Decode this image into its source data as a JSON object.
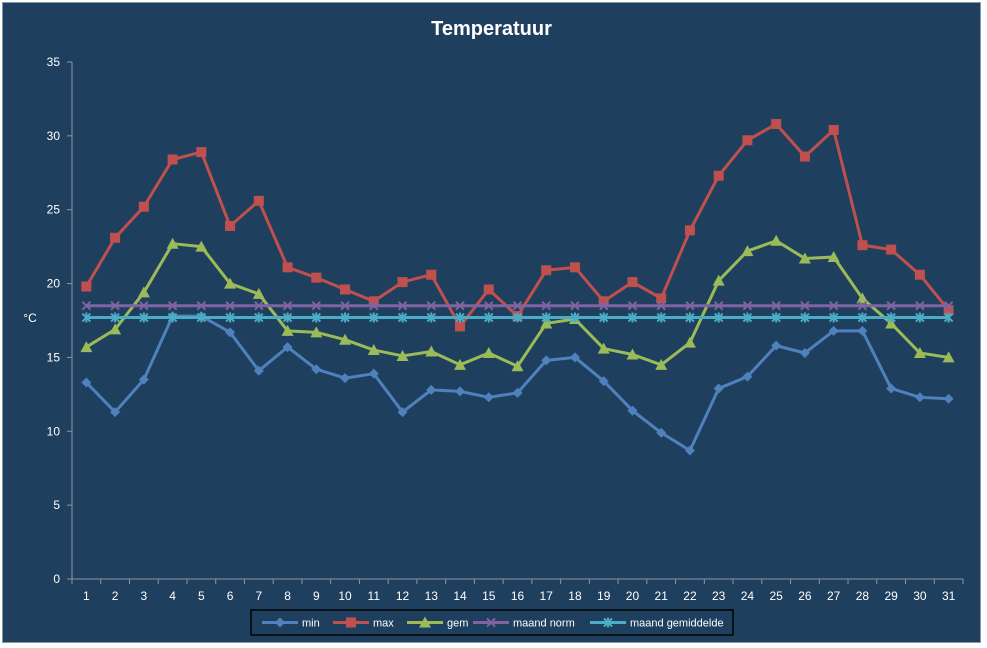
{
  "chart_data": {
    "type": "line",
    "title": "Temperatuur",
    "ylabel": "°C",
    "xlabel": "",
    "ylim": [
      0,
      35
    ],
    "yticks": [
      0,
      5,
      10,
      15,
      20,
      25,
      30,
      35
    ],
    "categories": [
      "1",
      "2",
      "3",
      "4",
      "5",
      "6",
      "7",
      "8",
      "9",
      "10",
      "11",
      "12",
      "13",
      "14",
      "15",
      "16",
      "17",
      "18",
      "19",
      "20",
      "21",
      "22",
      "23",
      "24",
      "25",
      "26",
      "27",
      "28",
      "29",
      "30",
      "31"
    ],
    "legend_position": "bottom",
    "grid": false,
    "series": [
      {
        "name": "min",
        "color": "#4f81bd",
        "marker": "diamond",
        "values": [
          13.3,
          11.3,
          13.5,
          17.8,
          17.8,
          16.7,
          14.1,
          15.7,
          14.2,
          13.6,
          13.9,
          11.3,
          12.8,
          12.7,
          12.3,
          12.6,
          14.8,
          15.0,
          13.4,
          11.4,
          9.9,
          8.7,
          12.9,
          13.7,
          15.8,
          15.3,
          16.8,
          16.8,
          12.9,
          12.3,
          12.2
        ]
      },
      {
        "name": "max",
        "color": "#c0504d",
        "marker": "square",
        "values": [
          19.8,
          23.1,
          25.2,
          28.4,
          28.9,
          23.9,
          25.6,
          21.1,
          20.4,
          19.6,
          18.8,
          20.1,
          20.6,
          17.1,
          19.6,
          17.8,
          20.9,
          21.1,
          18.8,
          20.1,
          19.0,
          23.6,
          27.3,
          29.7,
          30.8,
          28.6,
          30.4,
          22.6,
          22.3,
          20.6,
          18.2
        ]
      },
      {
        "name": "gem",
        "color": "#9bbb59",
        "marker": "triangle",
        "values": [
          15.7,
          16.9,
          19.4,
          22.7,
          22.5,
          20.0,
          19.3,
          16.8,
          16.7,
          16.2,
          15.5,
          15.1,
          15.4,
          14.5,
          15.3,
          14.4,
          17.3,
          17.6,
          15.6,
          15.2,
          14.5,
          16.0,
          20.2,
          22.2,
          22.9,
          21.7,
          21.8,
          19.0,
          17.3,
          15.3,
          15.0
        ]
      },
      {
        "name": "maand norm",
        "color": "#8064a2",
        "marker": "x",
        "values": [
          18.5,
          18.5,
          18.5,
          18.5,
          18.5,
          18.5,
          18.5,
          18.5,
          18.5,
          18.5,
          18.5,
          18.5,
          18.5,
          18.5,
          18.5,
          18.5,
          18.5,
          18.5,
          18.5,
          18.5,
          18.5,
          18.5,
          18.5,
          18.5,
          18.5,
          18.5,
          18.5,
          18.5,
          18.5,
          18.5,
          18.5
        ]
      },
      {
        "name": "maand gemiddelde",
        "color": "#4bacc6",
        "marker": "star",
        "values": [
          17.7,
          17.7,
          17.7,
          17.7,
          17.7,
          17.7,
          17.7,
          17.7,
          17.7,
          17.7,
          17.7,
          17.7,
          17.7,
          17.7,
          17.7,
          17.7,
          17.7,
          17.7,
          17.7,
          17.7,
          17.7,
          17.7,
          17.7,
          17.7,
          17.7,
          17.7,
          17.7,
          17.7,
          17.7,
          17.7,
          17.7
        ]
      }
    ]
  }
}
